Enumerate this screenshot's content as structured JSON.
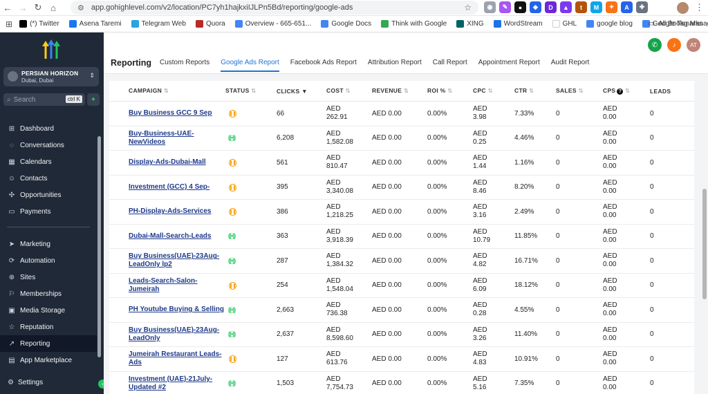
{
  "browser": {
    "url": "app.gohighlevel.com/v2/location/PC7yh1hajkxiIJLPn5Bd/reporting/google-ads",
    "bookmarks": [
      {
        "label": "(*) Twitter",
        "color": "#000000"
      },
      {
        "label": "Asena Taremi",
        "color": "#1877f2"
      },
      {
        "label": "Telegram Web",
        "color": "#2aa3df"
      },
      {
        "label": "Quora",
        "color": "#b92b27"
      },
      {
        "label": "Overview - 665-651...",
        "color": "#4285f4"
      },
      {
        "label": "Google Docs",
        "color": "#4285f4"
      },
      {
        "label": "Think with Google",
        "color": "#34a853"
      },
      {
        "label": "XING",
        "color": "#026466"
      },
      {
        "label": "WordStream",
        "color": "#1a73e8"
      },
      {
        "label": "GHL",
        "color": "#ffffff"
      },
      {
        "label": "google blog",
        "color": "#4285f4"
      },
      {
        "label": "Google Tag Manager",
        "color": "#4285f4"
      }
    ],
    "all_bookmarks": "All Bookmarks"
  },
  "sidebar": {
    "location_name": "PERSIAN HORIZON",
    "location_sub": "Dubai, Dubai",
    "search_placeholder": "Search",
    "search_shortcut": "ctrl K",
    "items_top": [
      {
        "label": "Dashboard",
        "icon": "dashboard-icon",
        "glyph": "⊞"
      },
      {
        "label": "Conversations",
        "icon": "chat-icon",
        "glyph": "◌"
      },
      {
        "label": "Calendars",
        "icon": "calendar-icon",
        "glyph": "▦"
      },
      {
        "label": "Contacts",
        "icon": "contacts-icon",
        "glyph": "☺"
      },
      {
        "label": "Opportunities",
        "icon": "opportunities-icon",
        "glyph": "✣"
      },
      {
        "label": "Payments",
        "icon": "payments-icon",
        "glyph": "▭"
      }
    ],
    "items_bottom": [
      {
        "label": "Marketing",
        "icon": "send-icon",
        "glyph": "➤"
      },
      {
        "label": "Automation",
        "icon": "automation-icon",
        "glyph": "⟳"
      },
      {
        "label": "Sites",
        "icon": "globe-icon",
        "glyph": "⊕"
      },
      {
        "label": "Memberships",
        "icon": "memberships-icon",
        "glyph": "⚐"
      },
      {
        "label": "Media Storage",
        "icon": "media-icon",
        "glyph": "▣"
      },
      {
        "label": "Reputation",
        "icon": "star-icon",
        "glyph": "☆"
      },
      {
        "label": "Reporting",
        "icon": "reporting-icon",
        "glyph": "↗"
      },
      {
        "label": "App Marketplace",
        "icon": "marketplace-icon",
        "glyph": "▤"
      }
    ],
    "settings_label": "Settings"
  },
  "header": {
    "title": "Reporting",
    "user_initials": "AT",
    "tabs": [
      "Custom Reports",
      "Google Ads Report",
      "Facebook Ads Report",
      "Attribution Report",
      "Call Report",
      "Appointment Report",
      "Audit Report"
    ],
    "active_tab": "Google Ads Report"
  },
  "table": {
    "columns": [
      "CAMPAIGN",
      "STATUS",
      "CLICKS",
      "COST",
      "REVENUE",
      "ROI %",
      "CPC",
      "CTR",
      "SALES",
      "CPS",
      "LEADS"
    ],
    "rows": [
      {
        "campaign": "Buy Business GCC 9 Sep",
        "status": "paused",
        "clicks": "66",
        "cost_cur": "AED",
        "cost": "262.91",
        "revenue": "AED 0.00",
        "roi": "0.00%",
        "cpc_cur": "AED",
        "cpc": "3.98",
        "ctr": "7.33%",
        "sales": "0",
        "cps_cur": "AED",
        "cps": "0.00",
        "leads": "0"
      },
      {
        "campaign": "Buy-Business-UAE-NewVideos",
        "status": "live",
        "clicks": "6,208",
        "cost_cur": "AED",
        "cost": "1,582.08",
        "revenue": "AED 0.00",
        "roi": "0.00%",
        "cpc_cur": "AED",
        "cpc": "0.25",
        "ctr": "4.46%",
        "sales": "0",
        "cps_cur": "AED",
        "cps": "0.00",
        "leads": "0"
      },
      {
        "campaign": "Display-Ads-Dubai-Mall",
        "status": "paused",
        "clicks": "561",
        "cost_cur": "AED",
        "cost": "810.47",
        "revenue": "AED 0.00",
        "roi": "0.00%",
        "cpc_cur": "AED",
        "cpc": "1.44",
        "ctr": "1.16%",
        "sales": "0",
        "cps_cur": "AED",
        "cps": "0.00",
        "leads": "0"
      },
      {
        "campaign": "Investment (GCC) 4 Sep-",
        "status": "paused",
        "clicks": "395",
        "cost_cur": "AED",
        "cost": "3,340.08",
        "revenue": "AED 0.00",
        "roi": "0.00%",
        "cpc_cur": "AED",
        "cpc": "8.46",
        "ctr": "8.20%",
        "sales": "0",
        "cps_cur": "AED",
        "cps": "0.00",
        "leads": "0"
      },
      {
        "campaign": "PH-Display-Ads-Services",
        "status": "paused",
        "clicks": "386",
        "cost_cur": "AED",
        "cost": "1,218.25",
        "revenue": "AED 0.00",
        "roi": "0.00%",
        "cpc_cur": "AED",
        "cpc": "3.16",
        "ctr": "2.49%",
        "sales": "0",
        "cps_cur": "AED",
        "cps": "0.00",
        "leads": "0"
      },
      {
        "campaign": "Dubai-Mall-Search-Leads",
        "status": "live",
        "clicks": "363",
        "cost_cur": "AED",
        "cost": "3,918.39",
        "revenue": "AED 0.00",
        "roi": "0.00%",
        "cpc_cur": "AED",
        "cpc": "10.79",
        "ctr": "11.85%",
        "sales": "0",
        "cps_cur": "AED",
        "cps": "0.00",
        "leads": "0"
      },
      {
        "campaign": "Buy Business(UAE)-23Aug-LeadOnly lp2",
        "status": "live",
        "clicks": "287",
        "cost_cur": "AED",
        "cost": "1,384.32",
        "revenue": "AED 0.00",
        "roi": "0.00%",
        "cpc_cur": "AED",
        "cpc": "4.82",
        "ctr": "16.71%",
        "sales": "0",
        "cps_cur": "AED",
        "cps": "0.00",
        "leads": "0"
      },
      {
        "campaign": "Leads-Search-Salon-Jumeirah",
        "status": "paused",
        "clicks": "254",
        "cost_cur": "AED",
        "cost": "1,548.04",
        "revenue": "AED 0.00",
        "roi": "0.00%",
        "cpc_cur": "AED",
        "cpc": "6.09",
        "ctr": "18.12%",
        "sales": "0",
        "cps_cur": "AED",
        "cps": "0.00",
        "leads": "0"
      },
      {
        "campaign": "PH Youtube Buying & Selling",
        "status": "live",
        "clicks": "2,663",
        "cost_cur": "AED",
        "cost": "736.38",
        "revenue": "AED 0.00",
        "roi": "0.00%",
        "cpc_cur": "AED",
        "cpc": "0.28",
        "ctr": "4.55%",
        "sales": "0",
        "cps_cur": "AED",
        "cps": "0.00",
        "leads": "0"
      },
      {
        "campaign": "Buy Business(UAE)-23Aug-LeadOnly",
        "status": "live",
        "clicks": "2,637",
        "cost_cur": "AED",
        "cost": "8,598.60",
        "revenue": "AED 0.00",
        "roi": "0.00%",
        "cpc_cur": "AED",
        "cpc": "3.26",
        "ctr": "11.40%",
        "sales": "0",
        "cps_cur": "AED",
        "cps": "0.00",
        "leads": "0"
      },
      {
        "campaign": "Jumeirah Restaurant Leads-Ads",
        "status": "paused",
        "clicks": "127",
        "cost_cur": "AED",
        "cost": "613.76",
        "revenue": "AED 0.00",
        "roi": "0.00%",
        "cpc_cur": "AED",
        "cpc": "4.83",
        "ctr": "10.91%",
        "sales": "0",
        "cps_cur": "AED",
        "cps": "0.00",
        "leads": "0"
      },
      {
        "campaign": "Investment (UAE)-21July-Updated #2",
        "status": "live",
        "clicks": "1,503",
        "cost_cur": "AED",
        "cost": "7,754.73",
        "revenue": "AED 0.00",
        "roi": "0.00%",
        "cpc_cur": "AED",
        "cpc": "5.16",
        "ctr": "7.35%",
        "sales": "0",
        "cps_cur": "AED",
        "cps": "0.00",
        "leads": "0"
      }
    ]
  },
  "colors": {
    "sidebar_bg": "#1f2937",
    "accent": "#1d74d8",
    "paused": "#f59e0b",
    "live": "#22c55e",
    "phone_btn": "#16a34a",
    "bell_btn": "#f97316",
    "avatar": "#c08479"
  }
}
